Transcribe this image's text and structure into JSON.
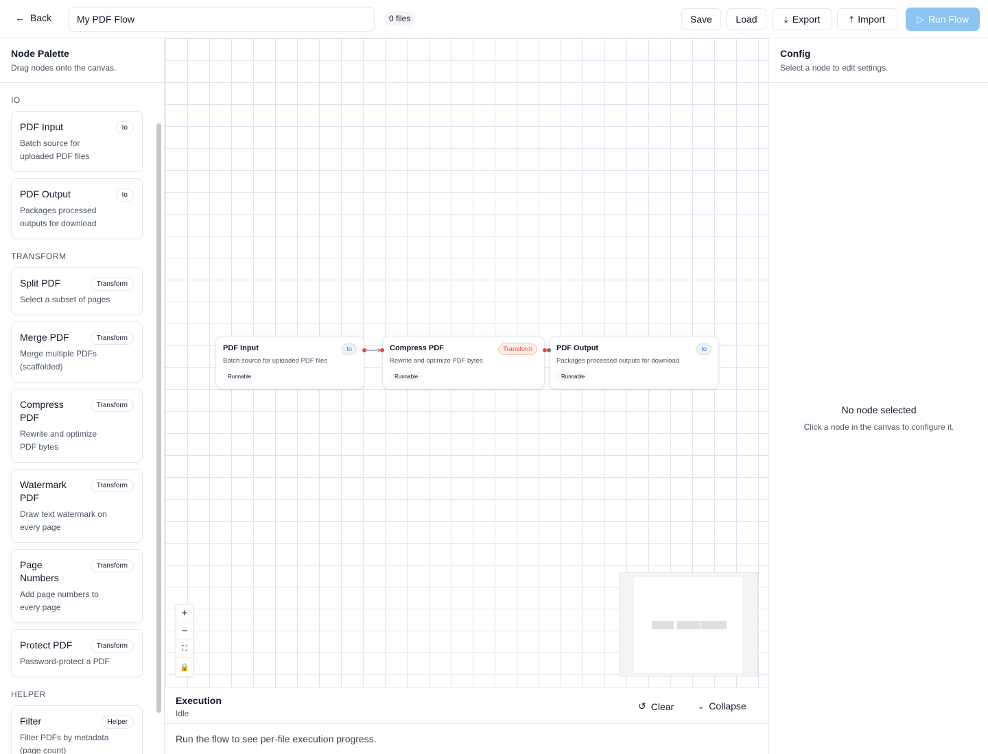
{
  "header": {
    "back": "Back",
    "flow_name": "My PDF Flow",
    "files": "0 files",
    "save": "Save",
    "load": "Load",
    "export": "Export",
    "import": "Import",
    "run": "Run Flow"
  },
  "palette": {
    "title": "Node Palette",
    "subtitle": "Drag nodes onto the canvas.",
    "sections": [
      {
        "label": "IO",
        "items": [
          {
            "title": "PDF Input",
            "badge": "Io",
            "desc": "Batch source for uploaded PDF files"
          },
          {
            "title": "PDF Output",
            "badge": "Io",
            "desc": "Packages processed outputs for download"
          }
        ]
      },
      {
        "label": "TRANSFORM",
        "items": [
          {
            "title": "Split PDF",
            "badge": "Transform",
            "desc": "Select a subset of pages"
          },
          {
            "title": "Merge PDF",
            "badge": "Transform",
            "desc": "Merge multiple PDFs (scaffolded)"
          },
          {
            "title": "Compress PDF",
            "badge": "Transform",
            "desc": "Rewrite and optimize PDF bytes"
          },
          {
            "title": "Watermark PDF",
            "badge": "Transform",
            "desc": "Draw text watermark on every page"
          },
          {
            "title": "Page Numbers",
            "badge": "Transform",
            "desc": "Add page numbers to every page"
          },
          {
            "title": "Protect PDF",
            "badge": "Transform",
            "desc": "Password-protect a PDF"
          }
        ]
      },
      {
        "label": "HELPER",
        "items": [
          {
            "title": "Filter",
            "badge": "Helper",
            "desc": "Filter PDFs by metadata (page count)"
          }
        ]
      }
    ]
  },
  "canvas": {
    "nodes": [
      {
        "title": "PDF Input",
        "badge": "Io",
        "desc": "Batch source for uploaded PDF files",
        "status": "Runnable"
      },
      {
        "title": "Compress PDF",
        "badge": "Transform",
        "desc": "Rewrite and optimize PDF bytes",
        "status": "Runnable"
      },
      {
        "title": "PDF Output",
        "badge": "Io",
        "desc": "Packages processed outputs for download",
        "status": "Runnable"
      }
    ],
    "colors": {
      "io_badge": "#3b82f6",
      "transform_badge": "#ef4444",
      "handle": "#ef4444"
    }
  },
  "execution": {
    "title": "Execution",
    "status": "Idle",
    "clear": "Clear",
    "collapse": "Collapse",
    "message": "Run the flow to see per-file execution progress."
  },
  "config": {
    "title": "Config",
    "subtitle": "Select a node to edit settings.",
    "empty_title": "No node selected",
    "empty_desc": "Click a node in the canvas to configure it."
  }
}
